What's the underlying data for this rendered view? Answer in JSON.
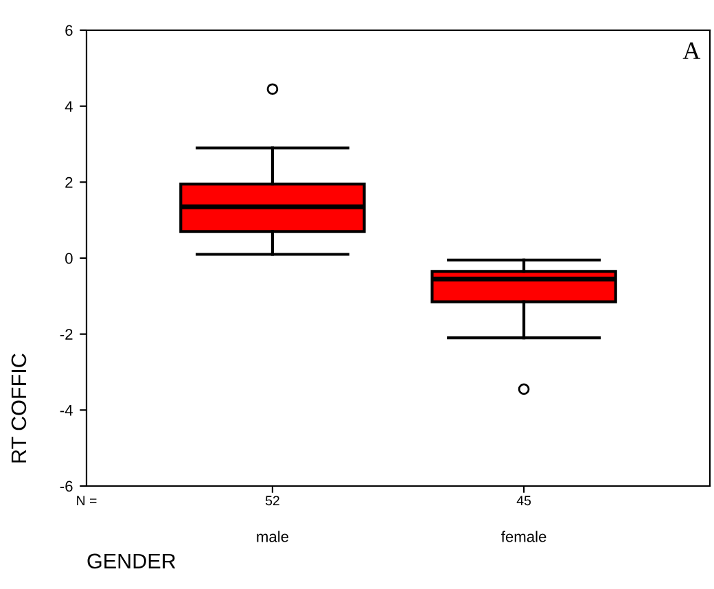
{
  "chart_data": {
    "type": "box",
    "xlabel": "GENDER",
    "ylabel": "RT COFFIC",
    "categories": [
      "male",
      "female"
    ],
    "series": [
      {
        "color": "#ff0000",
        "boxes": [
          {
            "low": 0.1,
            "q1": 0.7,
            "median": 1.35,
            "q3": 1.95,
            "high": 2.9,
            "outliers": [
              4.45
            ]
          },
          {
            "low": -2.1,
            "q1": -1.15,
            "median": -0.55,
            "q3": -0.35,
            "high": -0.05,
            "outliers": [
              -3.45
            ]
          }
        ]
      }
    ],
    "ylim": [
      -6,
      6
    ],
    "yticks": [
      -6,
      -4,
      -2,
      0,
      2,
      4,
      6
    ],
    "grid": false,
    "annotations": [
      "A",
      "N =",
      "52",
      "45"
    ]
  }
}
